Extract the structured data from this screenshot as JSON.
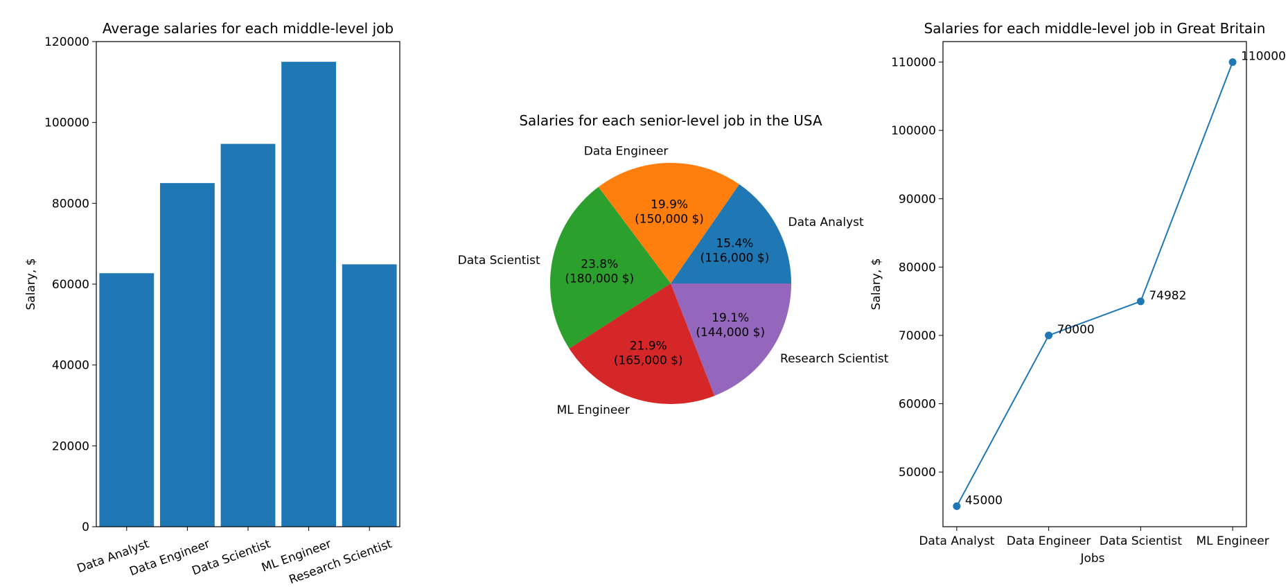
{
  "figure": {
    "colors": {
      "primary": "#1f77b4",
      "pie": [
        "#1f77b4",
        "#ff7f0e",
        "#2ca02c",
        "#d62728",
        "#9467bd"
      ],
      "axis": "#000000",
      "background": "#ffffff"
    }
  },
  "chart_data": [
    {
      "type": "bar",
      "title": "Average salaries for each middle-level job",
      "xlabel": "",
      "ylabel": "Salary, $",
      "categories": [
        "Data Analyst",
        "Data Engineer",
        "Data Scientist",
        "ML Engineer",
        "Research Scientist"
      ],
      "values": [
        62700,
        85000,
        94700,
        115000,
        64900
      ],
      "ylim": [
        0,
        120000
      ],
      "yticks": [
        0,
        20000,
        40000,
        60000,
        80000,
        100000,
        120000
      ],
      "tick_rotation_deg": 20,
      "grid": false,
      "color": "#1f77b4"
    },
    {
      "type": "pie",
      "title": "Salaries for each senior-level job in the USA",
      "labels": [
        "Data Analyst",
        "Data Engineer",
        "Data Scientist",
        "ML Engineer",
        "Research Scientist"
      ],
      "values": [
        116000,
        150000,
        180000,
        165000,
        144000
      ],
      "autopct": [
        "15.4%\n(116,000 $)",
        "19.9%\n(150,000 $)",
        "23.8%\n(180,000 $)",
        "21.9%\n(165,000 $)",
        "19.1%\n(144,000 $)"
      ],
      "colors": [
        "#1f77b4",
        "#ff7f0e",
        "#2ca02c",
        "#d62728",
        "#9467bd"
      ],
      "start_angle_deg": 0
    },
    {
      "type": "line",
      "title": "Salaries for each middle-level job in Great Britain",
      "xlabel": "Jobs",
      "ylabel": "Salary, $",
      "categories": [
        "Data Analyst",
        "Data Engineer",
        "Data Scientist",
        "ML Engineer"
      ],
      "values": [
        45000,
        70000,
        74982,
        110000
      ],
      "data_labels": [
        "45000",
        "70000",
        "74982",
        "110000"
      ],
      "ylim": [
        42000,
        113000
      ],
      "yticks": [
        50000,
        60000,
        70000,
        80000,
        90000,
        100000,
        110000
      ],
      "markers": true,
      "grid": false,
      "color": "#1f77b4"
    }
  ]
}
